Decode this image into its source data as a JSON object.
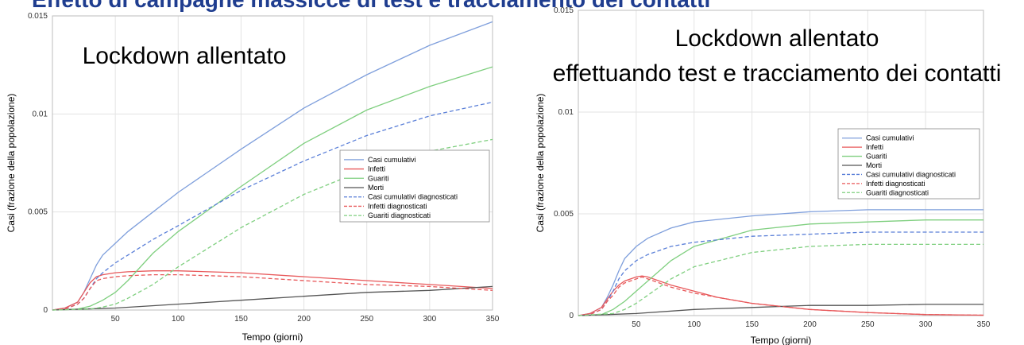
{
  "page": {
    "title": "Effetto di campagne massicce di test e tracciamento dei contatti"
  },
  "chart_data": [
    {
      "type": "line",
      "title_lines": [
        "Lockdown allentato"
      ],
      "xlabel": "Tempo (giorni)",
      "ylabel": "Casi (frazione della popolazione)",
      "xlim": [
        0,
        350
      ],
      "ylim": [
        0,
        0.015
      ],
      "xticks": [
        50,
        100,
        150,
        200,
        250,
        300,
        350
      ],
      "yticks": [
        0,
        0.005,
        0.01,
        0.015
      ],
      "ytick_labels": [
        "0",
        "0.005",
        "0.01",
        "0.015"
      ],
      "grid": true,
      "legend_position": "middle-right",
      "series": [
        {
          "name": "Casi cumulativi",
          "color": "#7f9fdc",
          "dash": "solid",
          "x": [
            0,
            10,
            20,
            25,
            30,
            35,
            40,
            50,
            60,
            80,
            100,
            150,
            200,
            250,
            300,
            350
          ],
          "y": [
            0,
            0.0001,
            0.0004,
            0.0009,
            0.0016,
            0.0023,
            0.0028,
            0.0034,
            0.004,
            0.005,
            0.006,
            0.0082,
            0.0103,
            0.012,
            0.0135,
            0.0147
          ]
        },
        {
          "name": "Infetti",
          "color": "#e8585a",
          "dash": "solid",
          "x": [
            0,
            10,
            20,
            25,
            30,
            35,
            40,
            50,
            60,
            80,
            100,
            150,
            200,
            250,
            300,
            350
          ],
          "y": [
            0,
            0.0001,
            0.0004,
            0.0009,
            0.0014,
            0.0017,
            0.0018,
            0.0019,
            0.00195,
            0.002,
            0.002,
            0.0019,
            0.0017,
            0.0015,
            0.0013,
            0.0011
          ]
        },
        {
          "name": "Guariti",
          "color": "#7fcf7f",
          "dash": "solid",
          "x": [
            0,
            20,
            30,
            40,
            50,
            60,
            80,
            100,
            150,
            200,
            250,
            300,
            350
          ],
          "y": [
            0,
            5e-05,
            0.0002,
            0.0005,
            0.0009,
            0.0015,
            0.0029,
            0.004,
            0.0063,
            0.0085,
            0.0102,
            0.0114,
            0.0124
          ]
        },
        {
          "name": "Morti",
          "color": "#555555",
          "dash": "solid",
          "x": [
            0,
            50,
            100,
            150,
            200,
            250,
            300,
            350
          ],
          "y": [
            0,
            0.0001,
            0.0003,
            0.0005,
            0.0007,
            0.0009,
            0.001,
            0.0012
          ]
        },
        {
          "name": "Casi cumulativi diagnosticati",
          "color": "#5a7fd8",
          "dash": "dashed",
          "x": [
            0,
            10,
            20,
            25,
            30,
            35,
            40,
            50,
            60,
            80,
            100,
            150,
            200,
            250,
            300,
            350
          ],
          "y": [
            0,
            5e-05,
            0.0003,
            0.0006,
            0.0011,
            0.0016,
            0.0019,
            0.0024,
            0.0028,
            0.0036,
            0.0043,
            0.0061,
            0.0076,
            0.0089,
            0.0099,
            0.0106
          ]
        },
        {
          "name": "Infetti diagnosticati",
          "color": "#e8585a",
          "dash": "dashed",
          "x": [
            0,
            10,
            20,
            25,
            30,
            35,
            40,
            50,
            60,
            80,
            100,
            150,
            200,
            250,
            300,
            350
          ],
          "y": [
            0,
            5e-05,
            0.0003,
            0.0006,
            0.0011,
            0.0015,
            0.0016,
            0.0017,
            0.00175,
            0.0018,
            0.0018,
            0.0017,
            0.0015,
            0.0013,
            0.0012,
            0.001
          ]
        },
        {
          "name": "Guariti diagnosticati",
          "color": "#7fcf7f",
          "dash": "dashed",
          "x": [
            0,
            30,
            40,
            50,
            60,
            80,
            100,
            150,
            200,
            250,
            300,
            350
          ],
          "y": [
            0,
            5e-05,
            0.00015,
            0.0003,
            0.0006,
            0.0013,
            0.0022,
            0.0042,
            0.0059,
            0.0072,
            0.0081,
            0.0087
          ]
        }
      ]
    },
    {
      "type": "line",
      "title_lines": [
        "Lockdown allentato",
        "effettuando test e tracciamento dei contatti"
      ],
      "xlabel": "Tempo (giorni)",
      "ylabel": "Casi (frazione della popolazione)",
      "xlim": [
        0,
        350
      ],
      "ylim": [
        0,
        0.015
      ],
      "xticks": [
        50,
        100,
        150,
        200,
        250,
        300,
        350
      ],
      "yticks": [
        0,
        0.005,
        0.01,
        0.015
      ],
      "ytick_labels": [
        "0",
        "0.005",
        "0.01",
        "0.015"
      ],
      "grid": true,
      "legend_position": "middle-right",
      "series": [
        {
          "name": "Casi cumulativi",
          "color": "#7f9fdc",
          "dash": "solid",
          "x": [
            0,
            10,
            20,
            25,
            30,
            35,
            40,
            50,
            60,
            80,
            100,
            150,
            200,
            250,
            300,
            350
          ],
          "y": [
            0,
            0.0001,
            0.0004,
            0.0009,
            0.0015,
            0.0022,
            0.0028,
            0.0034,
            0.0038,
            0.0043,
            0.0046,
            0.0049,
            0.0051,
            0.0052,
            0.0052,
            0.0052
          ]
        },
        {
          "name": "Infetti",
          "color": "#e8585a",
          "dash": "solid",
          "x": [
            0,
            10,
            20,
            25,
            30,
            35,
            40,
            50,
            55,
            60,
            70,
            80,
            100,
            120,
            150,
            200,
            250,
            300,
            350
          ],
          "y": [
            0,
            0.0001,
            0.0004,
            0.0008,
            0.0012,
            0.0015,
            0.0017,
            0.0019,
            0.00195,
            0.0019,
            0.0017,
            0.0015,
            0.0012,
            0.0009,
            0.0006,
            0.0003,
            0.00015,
            5e-05,
            2e-05
          ]
        },
        {
          "name": "Guariti",
          "color": "#7fcf7f",
          "dash": "solid",
          "x": [
            0,
            20,
            30,
            40,
            50,
            60,
            70,
            80,
            100,
            150,
            200,
            250,
            300,
            350
          ],
          "y": [
            0,
            5e-05,
            0.0003,
            0.0007,
            0.0012,
            0.0017,
            0.0022,
            0.0027,
            0.0034,
            0.0042,
            0.0045,
            0.0046,
            0.0047,
            0.0047
          ]
        },
        {
          "name": "Morti",
          "color": "#555555",
          "dash": "solid",
          "x": [
            0,
            50,
            100,
            150,
            200,
            250,
            300,
            350
          ],
          "y": [
            0,
            0.0001,
            0.0003,
            0.0004,
            0.0005,
            0.0005,
            0.00055,
            0.00055
          ]
        },
        {
          "name": "Casi cumulativi diagnosticati",
          "color": "#5a7fd8",
          "dash": "dashed",
          "x": [
            0,
            10,
            20,
            25,
            30,
            35,
            40,
            50,
            60,
            80,
            100,
            150,
            200,
            250,
            300,
            350
          ],
          "y": [
            0,
            5e-05,
            0.0003,
            0.0007,
            0.0012,
            0.0018,
            0.0022,
            0.0027,
            0.003,
            0.0034,
            0.0036,
            0.0039,
            0.004,
            0.0041,
            0.0041,
            0.0041
          ]
        },
        {
          "name": "Infetti diagnosticati",
          "color": "#e8585a",
          "dash": "dashed",
          "x": [
            0,
            10,
            20,
            25,
            30,
            35,
            40,
            50,
            55,
            60,
            70,
            80,
            100,
            120,
            150,
            200,
            250,
            300,
            350
          ],
          "y": [
            0,
            5e-05,
            0.0003,
            0.0007,
            0.001,
            0.0014,
            0.0016,
            0.0018,
            0.0019,
            0.0018,
            0.0016,
            0.0014,
            0.0011,
            0.0009,
            0.0006,
            0.0003,
            0.00015,
            5e-05,
            2e-05
          ]
        },
        {
          "name": "Guariti diagnosticati",
          "color": "#7fcf7f",
          "dash": "dashed",
          "x": [
            0,
            30,
            40,
            50,
            60,
            70,
            80,
            100,
            150,
            200,
            250,
            300,
            350
          ],
          "y": [
            0,
            0.0001,
            0.0003,
            0.0006,
            0.001,
            0.0014,
            0.0018,
            0.0024,
            0.0031,
            0.0034,
            0.0035,
            0.0035,
            0.0035
          ]
        }
      ]
    }
  ]
}
